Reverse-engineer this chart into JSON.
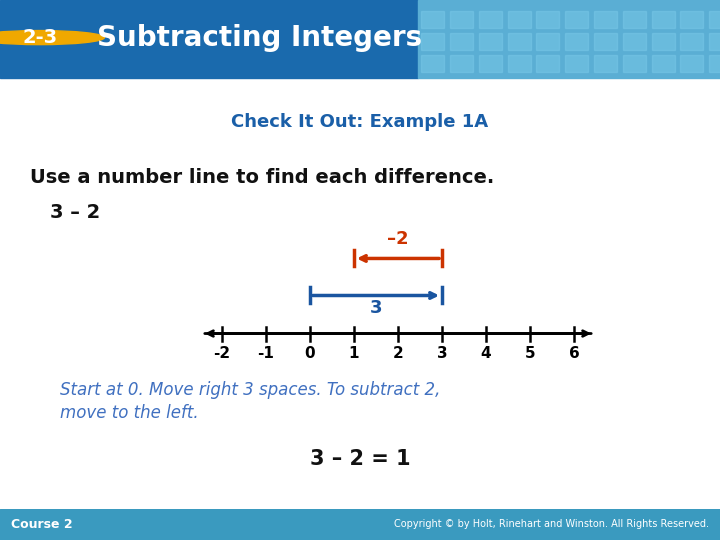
{
  "title_badge": "2-3",
  "title_text": "Subtracting Integers",
  "subtitle": "Check It Out: Example 1A",
  "instruction": "Use a number line to find each difference.",
  "problem_label": "3 – 2",
  "header_bg_left": "#1a6aad",
  "header_bg_right": "#5aaed4",
  "badge_color": "#f0a800",
  "badge_text_color": "#ffffff",
  "title_text_color": "#ffffff",
  "subtitle_color": "#1a5fa8",
  "body_bg_color": "#ffffff",
  "number_line_ticks": [
    -2,
    -1,
    0,
    1,
    2,
    3,
    4,
    5,
    6
  ],
  "arrow_3_color": "#1a55a0",
  "arrow_minus2_color": "#cc3300",
  "italic_text_line1": "Start at 0. Move right 3 spaces. To subtract 2,",
  "italic_text_line2": "move to the left.",
  "italic_text_color": "#4070c0",
  "result_text": "3 – 2 = 1",
  "result_text_color": "#111111",
  "footer_bg_color": "#3a9abf",
  "footer_text_left": "Course 2",
  "footer_text_right": "Copyright © by Holt, Rinehart and Winston. All Rights Reserved.",
  "footer_text_color": "#ffffff",
  "grid_color": "#6bbfe0"
}
